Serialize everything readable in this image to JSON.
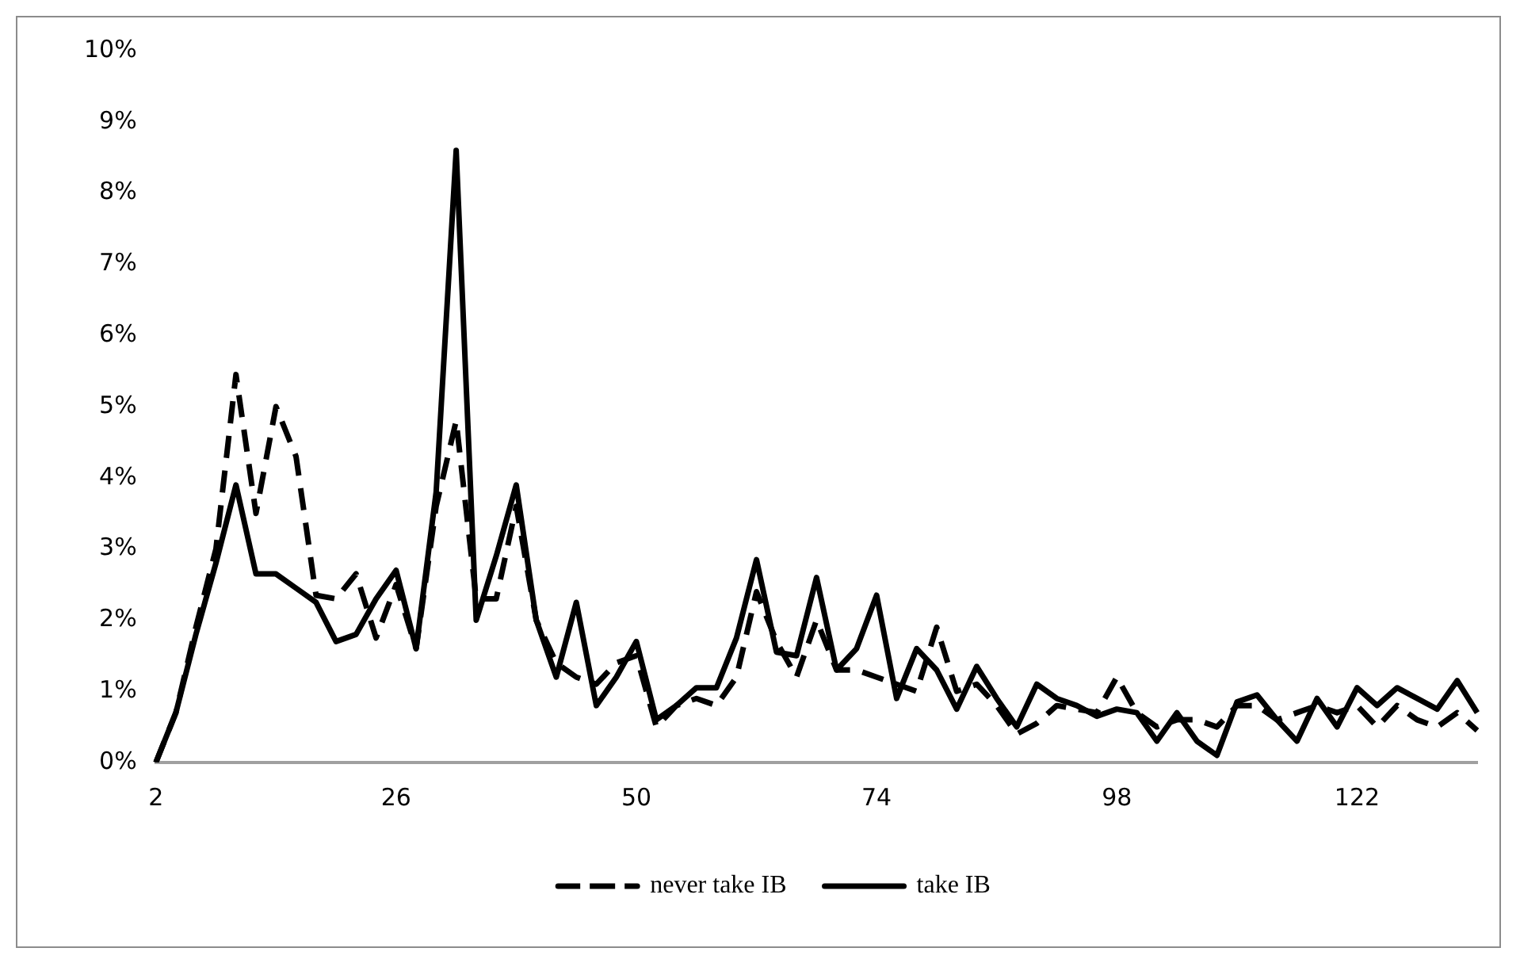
{
  "chart_data": {
    "type": "line",
    "categories": [
      "2",
      null,
      null,
      null,
      null,
      null,
      null,
      null,
      null,
      null,
      null,
      null,
      "26",
      null,
      null,
      null,
      null,
      null,
      null,
      null,
      null,
      null,
      null,
      null,
      "50",
      null,
      null,
      null,
      null,
      null,
      null,
      null,
      null,
      null,
      null,
      null,
      "74",
      null,
      null,
      null,
      null,
      null,
      null,
      null,
      null,
      null,
      null,
      null,
      "98",
      null,
      null,
      null,
      null,
      null,
      null,
      null,
      null,
      null,
      null,
      null,
      "122",
      null,
      null,
      null,
      null,
      null,
      null
    ],
    "series": [
      {
        "name": "never take IB",
        "color": "#000000",
        "line_style": "dashed",
        "values": [
          0,
          0.7,
          1.9,
          3.0,
          5.45,
          3.5,
          5.0,
          4.3,
          2.35,
          2.3,
          2.65,
          1.75,
          2.5,
          1.6,
          3.6,
          4.8,
          2.3,
          2.3,
          3.6,
          2.0,
          1.4,
          1.2,
          1.1,
          1.4,
          1.5,
          0.5,
          0.8,
          0.9,
          0.8,
          1.2,
          2.4,
          1.7,
          1.2,
          2.0,
          1.3,
          1.3,
          1.2,
          1.1,
          1.0,
          1.9,
          1.0,
          1.1,
          0.8,
          0.4,
          0.55,
          0.8,
          0.75,
          0.7,
          1.2,
          0.7,
          0.5,
          0.6,
          0.6,
          0.5,
          0.8,
          0.8,
          0.6,
          0.7,
          0.8,
          0.7,
          0.8,
          0.5,
          0.8,
          0.6,
          0.5,
          0.7,
          0.45
        ]
      },
      {
        "name": "take IB",
        "color": "#000000",
        "line_style": "solid",
        "values": [
          0,
          0.7,
          1.8,
          2.8,
          3.9,
          2.65,
          2.65,
          2.45,
          2.25,
          1.7,
          1.8,
          2.3,
          2.7,
          1.6,
          3.8,
          8.6,
          2.0,
          2.9,
          3.9,
          2.0,
          1.2,
          2.25,
          0.8,
          1.2,
          1.7,
          0.6,
          0.8,
          1.05,
          1.05,
          1.75,
          2.85,
          1.55,
          1.5,
          2.6,
          1.3,
          1.6,
          2.35,
          0.9,
          1.6,
          1.3,
          0.75,
          1.35,
          0.9,
          0.5,
          1.1,
          0.9,
          0.8,
          0.65,
          0.75,
          0.7,
          0.3,
          0.7,
          0.3,
          0.1,
          0.85,
          0.95,
          0.6,
          0.3,
          0.9,
          0.5,
          1.05,
          0.8,
          1.05,
          0.9,
          0.75,
          1.15,
          0.7
        ]
      }
    ],
    "ylim": [
      0,
      10
    ],
    "yticks": [
      {
        "value": 0,
        "label": "0%"
      },
      {
        "value": 1,
        "label": "1%"
      },
      {
        "value": 2,
        "label": "2%"
      },
      {
        "value": 3,
        "label": "3%"
      },
      {
        "value": 4,
        "label": "4%"
      },
      {
        "value": 5,
        "label": "5%"
      },
      {
        "value": 6,
        "label": "6%"
      },
      {
        "value": 7,
        "label": "7%"
      },
      {
        "value": 8,
        "label": "8%"
      },
      {
        "value": 9,
        "label": "9%"
      },
      {
        "value": 10,
        "label": "10%"
      }
    ],
    "grid": false,
    "legend": "bottom",
    "marker": "none"
  }
}
